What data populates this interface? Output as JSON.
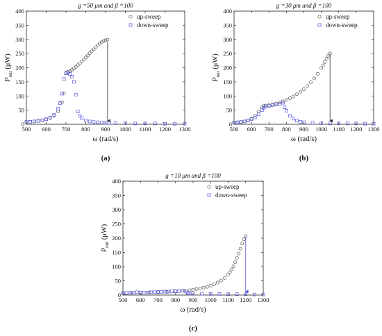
{
  "chart_data": [
    {
      "type": "scatter",
      "panel_label": "(a)",
      "title": "g =50 μm and β =100",
      "xlabel": "ω (rad/s)",
      "ylabel_main": "P",
      "ylabel_sub": "out",
      "ylabel_unit": " (μW)",
      "xlim": [
        500,
        1300
      ],
      "ylim": [
        0,
        400
      ],
      "xticks": [
        "500",
        "600",
        "700",
        "800",
        "900",
        "1000",
        "1100",
        "1200",
        "1300"
      ],
      "yticks": [
        "0",
        "50",
        "100",
        "150",
        "200",
        "250",
        "300",
        "350",
        "400"
      ],
      "legend": [
        "up-sweep",
        "down-sweep"
      ],
      "legend_position": "top-right",
      "jump_arrow": {
        "x": 910,
        "y_from": 290,
        "y_to": 5
      },
      "series": [
        {
          "name": "up-sweep",
          "marker": "circle",
          "color": "#555555",
          "x": [
            500,
            520,
            540,
            560,
            580,
            600,
            620,
            640,
            660,
            680,
            690,
            700,
            710,
            720,
            730,
            740,
            750,
            760,
            770,
            780,
            790,
            800,
            810,
            820,
            830,
            840,
            850,
            860,
            870,
            880,
            890,
            900,
            910
          ],
          "y": [
            8,
            9,
            10,
            12,
            14,
            17,
            22,
            30,
            45,
            78,
            110,
            182,
            185,
            188,
            192,
            197,
            203,
            209,
            215,
            222,
            229,
            236,
            243,
            251,
            258,
            265,
            272,
            279,
            285,
            290,
            294,
            297,
            299
          ]
        },
        {
          "name": "down-sweep",
          "marker": "square",
          "color": "#5555dd",
          "x": [
            1300,
            1250,
            1200,
            1150,
            1100,
            1050,
            1000,
            950,
            920,
            900,
            880,
            860,
            840,
            820,
            800,
            780,
            770,
            760,
            750,
            740,
            730,
            720,
            710,
            700,
            690,
            680,
            670,
            660,
            640,
            620,
            600,
            580,
            560,
            540,
            520,
            500
          ],
          "y": [
            2,
            2,
            2,
            3,
            3,
            3,
            4,
            4,
            5,
            5,
            6,
            7,
            8,
            10,
            14,
            22,
            30,
            45,
            105,
            150,
            168,
            178,
            182,
            180,
            160,
            108,
            75,
            55,
            33,
            24,
            18,
            14,
            12,
            10,
            9,
            8
          ]
        }
      ]
    },
    {
      "type": "scatter",
      "panel_label": "(b)",
      "title": "g =30 μm and β =100",
      "xlabel": "ω (rad/s)",
      "ylabel_main": "P",
      "ylabel_sub": "out",
      "ylabel_unit": " (μW)",
      "xlim": [
        500,
        1300
      ],
      "ylim": [
        0,
        400
      ],
      "xticks": [
        "500",
        "600",
        "700",
        "800",
        "900",
        "1000",
        "1100",
        "1200",
        "1300"
      ],
      "yticks": [
        "0",
        "50",
        "100",
        "150",
        "200",
        "250",
        "300",
        "350",
        "400"
      ],
      "legend": [
        "up-sweep",
        "down-sweep"
      ],
      "legend_position": "top-right",
      "jump_arrow": {
        "x": 1050,
        "y_from": 250,
        "y_to": 5
      },
      "series": [
        {
          "name": "up-sweep",
          "marker": "circle",
          "color": "#555555",
          "x": [
            500,
            520,
            540,
            560,
            580,
            600,
            620,
            640,
            660,
            670,
            680,
            700,
            720,
            740,
            760,
            780,
            800,
            820,
            840,
            860,
            880,
            900,
            920,
            940,
            960,
            980,
            1000,
            1010,
            1020,
            1030,
            1040,
            1050
          ],
          "y": [
            5,
            6,
            8,
            10,
            14,
            20,
            30,
            45,
            60,
            66,
            66,
            68,
            70,
            73,
            77,
            81,
            86,
            92,
            98,
            106,
            115,
            124,
            135,
            148,
            162,
            178,
            198,
            208,
            220,
            232,
            242,
            250
          ]
        },
        {
          "name": "down-sweep",
          "marker": "square",
          "color": "#5555dd",
          "x": [
            1300,
            1250,
            1200,
            1150,
            1100,
            1050,
            1000,
            950,
            900,
            880,
            860,
            840,
            820,
            800,
            790,
            780,
            760,
            740,
            720,
            700,
            680,
            670,
            660,
            640,
            620,
            600,
            580,
            560,
            540,
            520,
            500
          ],
          "y": [
            2,
            2,
            3,
            3,
            3,
            3,
            4,
            5,
            7,
            9,
            13,
            20,
            30,
            48,
            60,
            76,
            72,
            70,
            67,
            65,
            62,
            58,
            50,
            35,
            24,
            18,
            13,
            10,
            8,
            7,
            5
          ]
        }
      ]
    },
    {
      "type": "scatter",
      "panel_label": "(c)",
      "title": "g =10 μm and β =100",
      "xlabel": "ω (rad/s)",
      "ylabel_main": "P",
      "ylabel_sub": "out",
      "ylabel_unit": " (μW)",
      "xlim": [
        500,
        1300
      ],
      "ylim": [
        0,
        400
      ],
      "xticks": [
        "500",
        "600",
        "700",
        "800",
        "900",
        "1000",
        "1100",
        "1200",
        "1300"
      ],
      "yticks": [
        "0",
        "50",
        "100",
        "150",
        "200",
        "250",
        "300",
        "350",
        "400"
      ],
      "legend": [
        "up-sweep",
        "down-sweep"
      ],
      "legend_position": "top-right",
      "jump_arrow": {
        "x": 1200,
        "y_from": 205,
        "y_to": 5
      },
      "series": [
        {
          "name": "up-sweep",
          "marker": "circle",
          "color": "#555555",
          "x": [
            500,
            550,
            600,
            650,
            700,
            750,
            800,
            850,
            880,
            900,
            920,
            940,
            960,
            980,
            1000,
            1020,
            1040,
            1060,
            1080,
            1100,
            1110,
            1120,
            1130,
            1140,
            1150,
            1160,
            1170,
            1180,
            1190,
            1200
          ],
          "y": [
            8,
            8,
            9,
            9,
            10,
            11,
            13,
            15,
            17,
            19,
            21,
            23,
            26,
            29,
            33,
            38,
            44,
            51,
            60,
            72,
            80,
            90,
            101,
            115,
            130,
            146,
            163,
            181,
            196,
            207
          ]
        },
        {
          "name": "down-sweep",
          "marker": "square",
          "color": "#5555dd",
          "x": [
            1300,
            1250,
            1200,
            1150,
            1100,
            1050,
            1000,
            950,
            900,
            880,
            870,
            860,
            840,
            820,
            800,
            780,
            760,
            740,
            720,
            700,
            680,
            660,
            640,
            620,
            600,
            580,
            560,
            540,
            520,
            500
          ],
          "y": [
            2,
            2,
            3,
            3,
            3,
            4,
            4,
            5,
            6,
            6,
            7,
            12,
            15,
            14,
            13,
            13,
            12,
            12,
            11,
            11,
            10,
            10,
            9,
            9,
            8,
            10,
            8,
            8,
            7,
            7
          ]
        }
      ]
    }
  ]
}
